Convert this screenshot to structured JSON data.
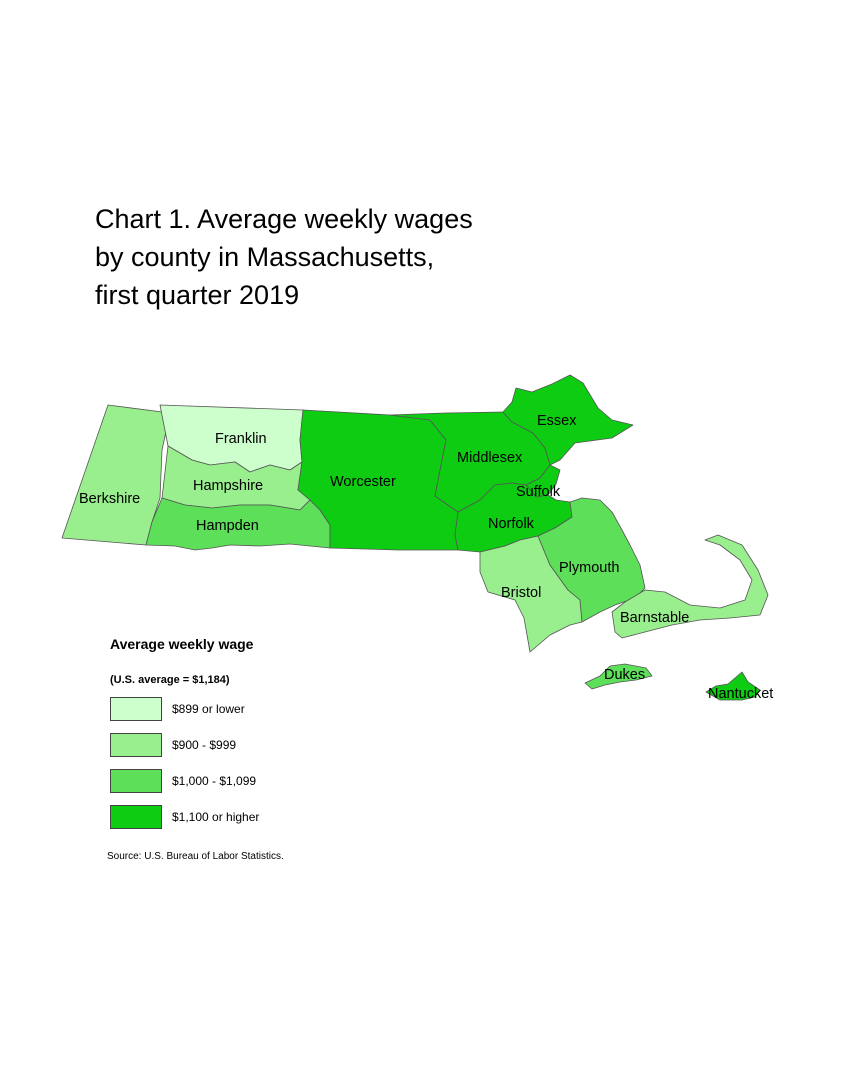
{
  "title": {
    "line1": "Chart 1. Average weekly wages",
    "line2": "by county in Massachusetts,",
    "line3": "first quarter 2019"
  },
  "colors": {
    "low": "#ccffcc",
    "mid_low": "#99ee8e",
    "mid_high": "#5ddf5a",
    "high": "#0dcc12"
  },
  "counties": {
    "berkshire": {
      "name": "Berkshire",
      "category": "$900 - $999"
    },
    "franklin": {
      "name": "Franklin",
      "category": "$899 or lower"
    },
    "hampshire": {
      "name": "Hampshire",
      "category": "$900 - $999"
    },
    "hampden": {
      "name": "Hampden",
      "category": "$1,000 - $1,099"
    },
    "worcester": {
      "name": "Worcester",
      "category": "$1,100 or higher"
    },
    "middlesex": {
      "name": "Middlesex",
      "category": "$1,100 or higher"
    },
    "essex": {
      "name": "Essex",
      "category": "$1,100 or higher"
    },
    "suffolk": {
      "name": "Suffolk",
      "category": "$1,100 or higher"
    },
    "norfolk": {
      "name": "Norfolk",
      "category": "$1,100 or higher"
    },
    "bristol": {
      "name": "Bristol",
      "category": "$900 - $999"
    },
    "plymouth": {
      "name": "Plymouth",
      "category": "$1,000 - $1,099"
    },
    "barnstable": {
      "name": "Barnstable",
      "category": "$900 - $999"
    },
    "dukes": {
      "name": "Dukes",
      "category": "$1,000 - $1,099"
    },
    "nantucket": {
      "name": "Nantucket",
      "category": "$1,100 or higher"
    }
  },
  "legend": {
    "title": "Average weekly wage",
    "subtitle": "(U.S. average = $1,184)",
    "items": [
      {
        "label": "$899 or lower",
        "color": "#ccffcc"
      },
      {
        "label": "$900 - $999",
        "color": "#99ee8e"
      },
      {
        "label": "$1,000 - $1,099",
        "color": "#5ddf5a"
      },
      {
        "label": "$1,100 or higher",
        "color": "#0dcc12"
      }
    ]
  },
  "source": "Source: U.S. Bureau of Labor Statistics."
}
